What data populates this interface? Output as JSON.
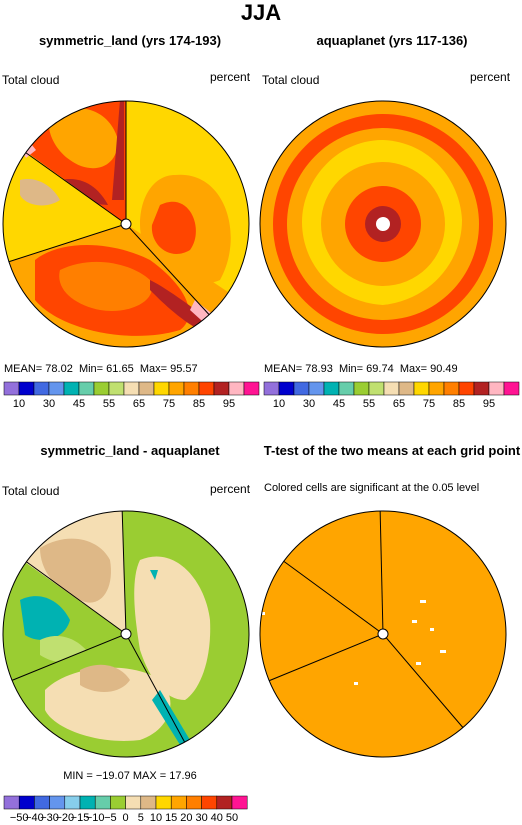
{
  "figure": {
    "title": "JJA"
  },
  "panels": {
    "p1": {
      "title": "symmetric_land (yrs 174-193)",
      "left_label": "Total cloud",
      "right_label": "percent",
      "mean_label": "MEAN=",
      "mean": "78.02",
      "min_label": "Min=",
      "min": "61.65",
      "max_label": "Max=",
      "max": "95.57"
    },
    "p2": {
      "title": "aquaplanet (yrs 117-136)",
      "left_label": "Total cloud",
      "right_label": "percent",
      "mean_label": "MEAN=",
      "mean": "78.93",
      "min_label": "Min=",
      "min": "69.74",
      "max_label": "Max=",
      "max": "90.49"
    },
    "p3": {
      "title": "symmetric_land - aquaplanet",
      "left_label": "Total cloud",
      "right_label": "percent",
      "stats_text": "MIN = −19.07 MAX =  17.96"
    },
    "p4": {
      "title": "T-test of the two means at each grid point",
      "subtitle": "Colored cells are significant at the 0.05 level"
    }
  },
  "chart_data": [
    {
      "type": "heatmap",
      "projection": "polar",
      "title": "symmetric_land (yrs 174-193)",
      "field": "Total cloud",
      "units": "percent",
      "stats": {
        "mean": 78.02,
        "min": 61.65,
        "max": 95.57
      },
      "colorbar": {
        "labels": [
          "10",
          "30",
          "45",
          "55",
          "65",
          "75",
          "85",
          "95"
        ],
        "colors": [
          "#9370db",
          "#0000cd",
          "#4169e1",
          "#6495ed",
          "#00b2b2",
          "#66cdaa",
          "#9acd32",
          "#c0e070",
          "#f5deb3",
          "#deb887",
          "#ffd700",
          "#ffa500",
          "#ff7f00",
          "#ff4500",
          "#b22222",
          "#ffb6c1",
          "#ff1493"
        ]
      }
    },
    {
      "type": "heatmap",
      "projection": "polar",
      "title": "aquaplanet (yrs 117-136)",
      "field": "Total cloud",
      "units": "percent",
      "stats": {
        "mean": 78.93,
        "min": 69.74,
        "max": 90.49
      },
      "colorbar": {
        "labels": [
          "10",
          "30",
          "45",
          "55",
          "65",
          "75",
          "85",
          "95"
        ],
        "colors": [
          "#9370db",
          "#0000cd",
          "#4169e1",
          "#6495ed",
          "#00b2b2",
          "#66cdaa",
          "#9acd32",
          "#c0e070",
          "#f5deb3",
          "#deb887",
          "#ffd700",
          "#ffa500",
          "#ff7f00",
          "#ff4500",
          "#b22222",
          "#ffb6c1",
          "#ff1493"
        ]
      }
    },
    {
      "type": "heatmap",
      "projection": "polar",
      "title": "symmetric_land - aquaplanet",
      "field": "Total cloud",
      "units": "percent",
      "stats": {
        "min": -19.07,
        "max": 17.96
      },
      "colorbar": {
        "labels": [
          "−50",
          "−40",
          "−30",
          "−20",
          "−15",
          "−10",
          "−5",
          "0",
          "5",
          "10",
          "15",
          "20",
          "30",
          "40",
          "50"
        ],
        "colors": [
          "#9370db",
          "#0000cd",
          "#4169e1",
          "#6495ed",
          "#87ceeb",
          "#00b2b2",
          "#66cdaa",
          "#9acd32",
          "#f5deb3",
          "#deb887",
          "#ffd700",
          "#ffa500",
          "#ff7f00",
          "#ff4500",
          "#b22222",
          "#ff1493"
        ]
      }
    },
    {
      "type": "heatmap",
      "projection": "polar",
      "title": "T-test of the two means at each grid point",
      "subtitle": "Colored cells are significant at the 0.05 level",
      "significant_color": "#ffa500"
    }
  ]
}
